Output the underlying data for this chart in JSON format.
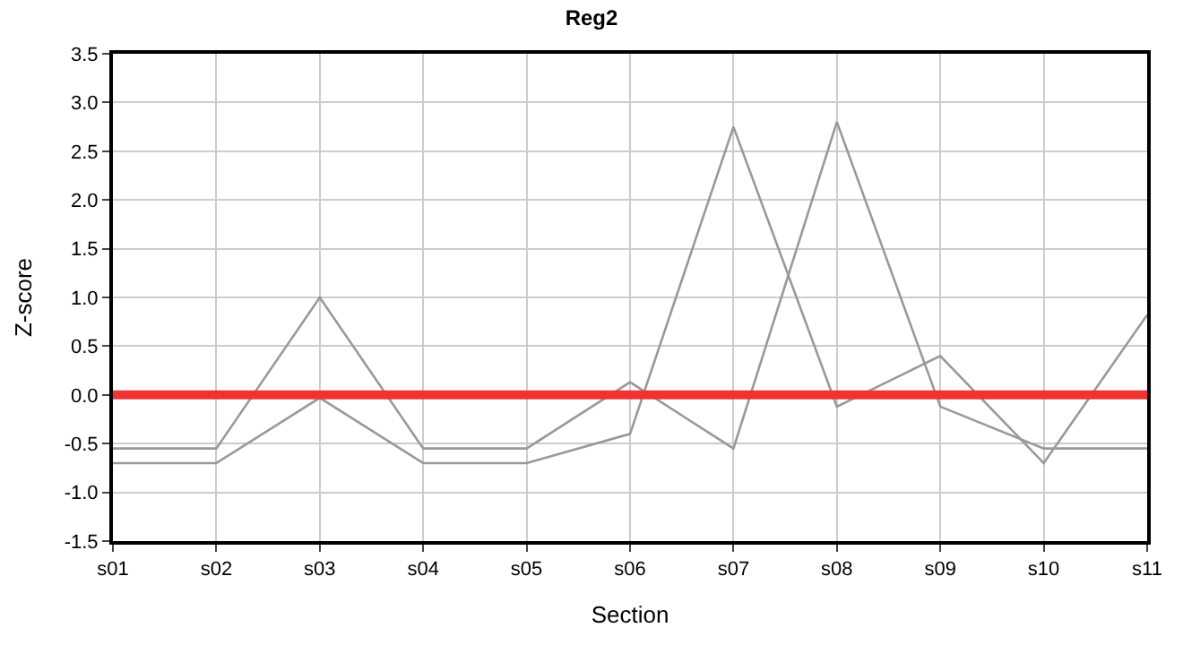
{
  "chart_data": {
    "type": "line",
    "title": "Reg2",
    "xlabel": "Section",
    "ylabel": "Z-score",
    "categories": [
      "s01",
      "s02",
      "s03",
      "s04",
      "s05",
      "s06",
      "s07",
      "s08",
      "s09",
      "s10",
      "s11"
    ],
    "series": [
      {
        "color": "#999999",
        "values": [
          -0.55,
          -0.55,
          1.0,
          -0.55,
          -0.55,
          0.13,
          -0.55,
          2.8,
          -0.12,
          -0.55,
          -0.55
        ]
      },
      {
        "color": "#999999",
        "values": [
          -0.7,
          -0.7,
          -0.03,
          -0.7,
          -0.7,
          -0.4,
          2.75,
          -0.12,
          0.4,
          -0.7,
          0.82
        ]
      }
    ],
    "ylim": [
      -1.5,
      3.5
    ],
    "yticks": [
      -1.5,
      {
        "value": -1,
        "label": "-1.0"
      },
      -0.5,
      {
        "value": 0,
        "label": "0.0"
      },
      0.5,
      {
        "value": 1,
        "label": "1.0"
      },
      1.5,
      {
        "value": 2,
        "label": "2.0"
      },
      2.5,
      {
        "value": 3,
        "label": "3.0"
      },
      3.5
    ],
    "ref_lines": [
      {
        "axis": "y",
        "value": 0,
        "color": "#ee3333"
      }
    ],
    "grid": true,
    "marker": "none",
    "line_style": "solid"
  }
}
